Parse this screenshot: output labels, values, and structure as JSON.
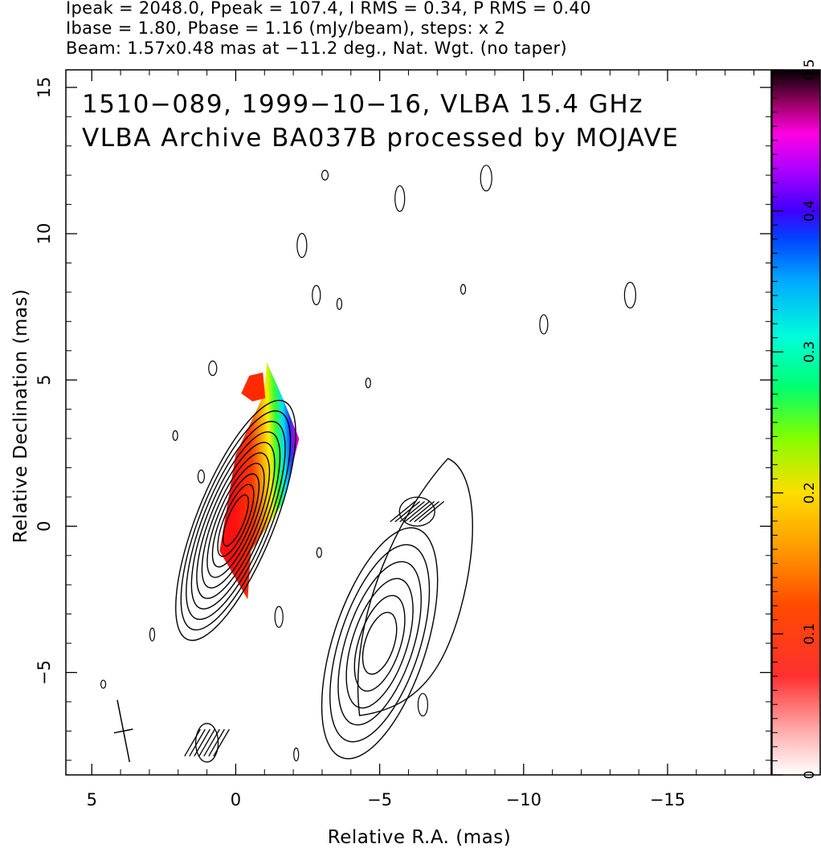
{
  "header": {
    "line1": "Ipeak = 2048.0, Ppeak = 107.4, I RMS = 0.34, P RMS = 0.40",
    "line2": "Ibase = 1.80, Pbase = 1.16 (mJy/beam), steps: x 2",
    "line3": "Beam: 1.57x0.48 mas at −11.2 deg., Nat. Wgt. (no taper)"
  },
  "chart_data": {
    "type": "heatmap",
    "annotation_line1": "1510−089, 1999−10−16, VLBA 15.4 GHz",
    "annotation_line2": "VLBA Archive BA037B processed by MOJAVE",
    "xlabel": "Relative R.A. (mas)",
    "ylabel": "Relative Declination (mas)",
    "xlim": [
      5.9,
      -18.6
    ],
    "ylim": [
      -8.5,
      15.6
    ],
    "x_ticks": [
      5,
      0,
      -5,
      -10,
      -15
    ],
    "x_tick_labels": [
      "5",
      "0",
      "−5",
      "−10",
      "−15"
    ],
    "y_ticks": [
      -5,
      0,
      5,
      10,
      15
    ],
    "y_tick_labels": [
      "−5",
      "0",
      "5",
      "10",
      "15"
    ],
    "colorbar": {
      "min": 0,
      "max": 0.5,
      "ticks": [
        0,
        0.1,
        0.2,
        0.3,
        0.4,
        0.5
      ],
      "tick_labels": [
        "0",
        "0.1",
        "0.2",
        "0.3",
        "0.4",
        "0.5"
      ]
    },
    "beam": {
      "major_mas": 1.57,
      "minor_mas": 0.48,
      "pa_deg": -11.2,
      "center": [
        3.9,
        -7.0
      ]
    },
    "core_component": {
      "center": [
        0.0,
        0.2
      ],
      "contour_levels": 10
    },
    "jet_component": {
      "center": [
        -5.0,
        -4.0
      ],
      "contour_levels": 6
    },
    "fractional_polarization_region": {
      "ra_range": [
        0.7,
        -2.2
      ],
      "dec_range": [
        -2.5,
        5.2
      ]
    }
  }
}
